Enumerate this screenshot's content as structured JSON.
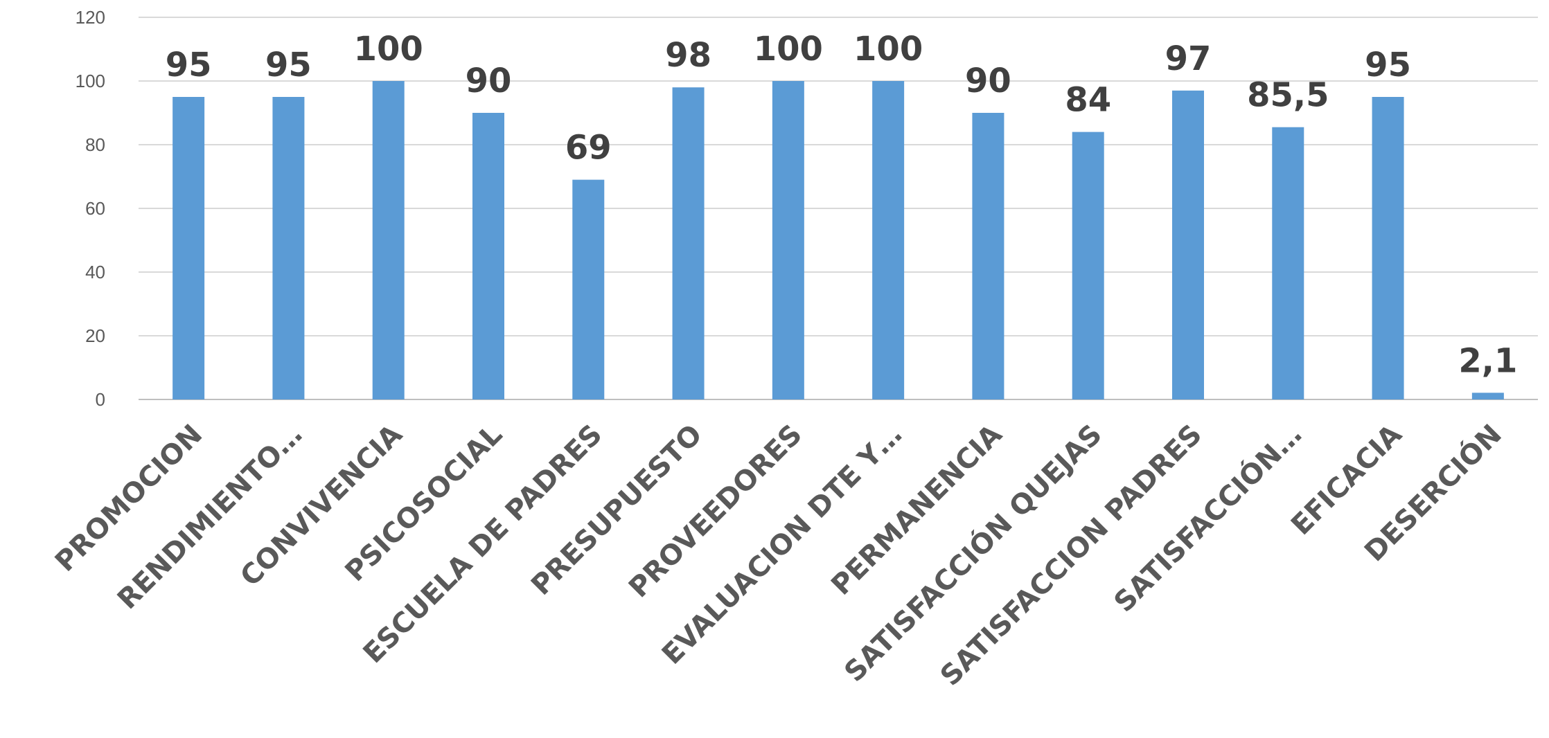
{
  "chart_data": {
    "type": "bar",
    "categories": [
      "PROMOCION",
      "RENDIMIENTO…",
      "CONVIVENCIA",
      "PSICOSOCIAL",
      "ESCUELA DE PADRES",
      "PRESUPUESTO",
      "PROVEEDORES",
      "EVALUACION DTE Y…",
      "PERMANENCIA",
      "SATISFACCIÓN QUEJAS",
      "SATISFACCION PADRES",
      "SATISFACCIÓN…",
      "EFICACIA",
      "DESERCIÓN"
    ],
    "values": [
      95,
      95,
      100,
      90,
      69,
      98,
      100,
      100,
      90,
      84,
      97,
      85.5,
      95,
      2.1
    ],
    "data_labels": [
      "95",
      "95",
      "100",
      "90",
      "69",
      "98",
      "100",
      "100",
      "90",
      "84",
      "97",
      "85,5",
      "95",
      "2,1"
    ],
    "yticks": [
      "0",
      "20",
      "40",
      "60",
      "80",
      "100",
      "120"
    ],
    "ylim": [
      0,
      120
    ],
    "title": "",
    "xlabel": "",
    "ylabel": "",
    "grid": true,
    "legend": "none",
    "colors": {
      "bar": "#5b9bd5",
      "grid": "#d9d9d9",
      "text": "#595959"
    }
  }
}
